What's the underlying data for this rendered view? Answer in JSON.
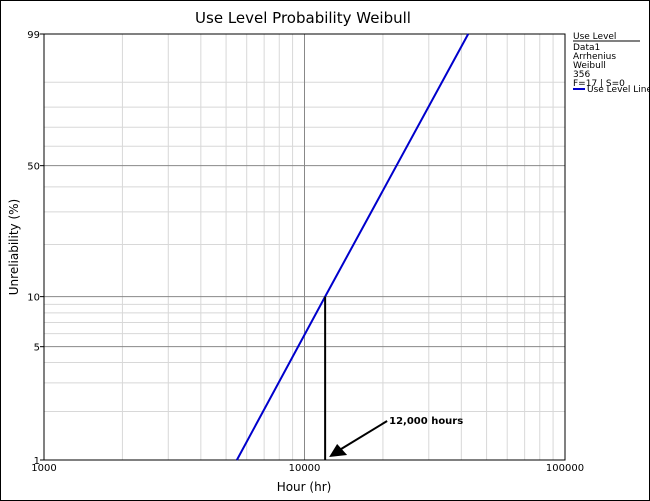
{
  "chart_data": {
    "type": "line",
    "title": "Use Level Probability Weibull",
    "xlabel": "Hour (hr)",
    "ylabel": "Unreliability (%)",
    "x_scale": "log",
    "y_scale": "weibull",
    "xlim": [
      1000,
      100000
    ],
    "ylim": [
      1,
      99
    ],
    "x_ticks": [
      1000,
      10000,
      100000
    ],
    "x_tick_labels": [
      "1000",
      "10000",
      "100000"
    ],
    "y_ticks": [
      1,
      5,
      10,
      50,
      99
    ],
    "y_tick_labels": [
      "1",
      "5",
      "10",
      "50",
      "99"
    ],
    "grid": true,
    "legend_position": "right",
    "series": [
      {
        "name": "Use Level Line",
        "color": "#0000cc",
        "x": [
          5500,
          12000,
          42500
        ],
        "y": [
          1,
          10,
          99
        ]
      }
    ],
    "reference_line": {
      "x": 12000,
      "y": 10,
      "color": "#000000"
    },
    "annotation": {
      "text": "12,000 hours",
      "x": 12000,
      "y": 1
    }
  },
  "legend": {
    "header": "Use Level",
    "lines": [
      "Data1",
      "Arrhenius",
      "Weibull",
      "356",
      "F=17 | S=0"
    ],
    "series_label": "Use Level Line",
    "series_color": "#0000cc"
  }
}
